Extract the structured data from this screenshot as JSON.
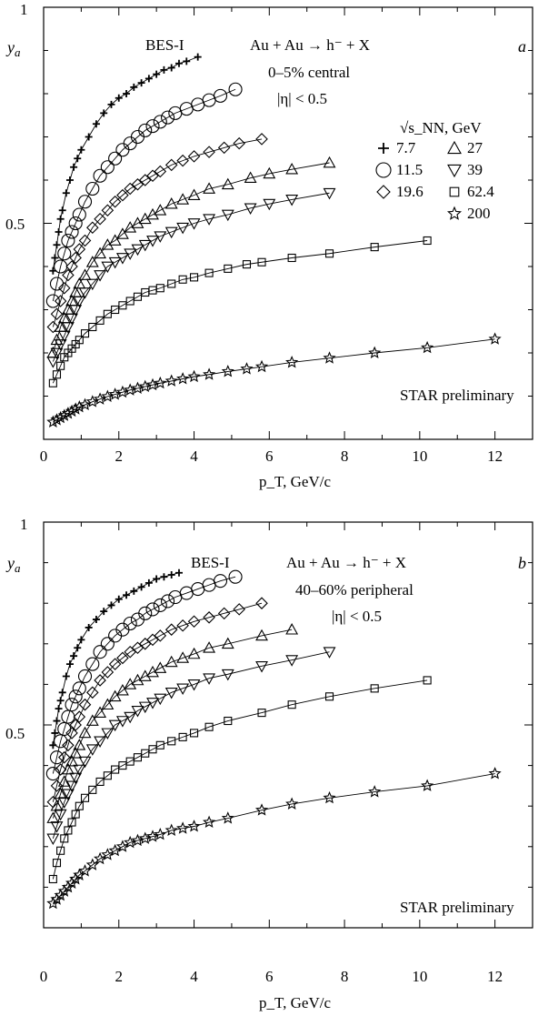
{
  "figure": {
    "energy_header": "√s_NN, GeV",
    "panels_note": "two panels share x axis p_T"
  },
  "chart_data": [
    {
      "type": "line",
      "panel_letter": "a",
      "title_lines": [
        "BES-I",
        "Au + Au → h⁻ + X",
        "0–5% central",
        "|η| < 0.5"
      ],
      "note": "STAR preliminary",
      "xlabel": "p_T, GeV/c",
      "ylabel": "y_a",
      "xlim": [
        0,
        13
      ],
      "ylim": [
        0,
        1
      ],
      "x_ticks": [
        "0",
        "2",
        "4",
        "6",
        "8",
        "10",
        "12"
      ],
      "y_ticks": [
        "0.5",
        "1"
      ],
      "legend_title": "√s_NN, GeV",
      "series": [
        {
          "name": "7.7",
          "marker": "plus",
          "x": [
            0.25,
            0.3,
            0.35,
            0.4,
            0.45,
            0.5,
            0.6,
            0.7,
            0.8,
            0.9,
            1.0,
            1.2,
            1.4,
            1.6,
            1.8,
            2.0,
            2.2,
            2.4,
            2.6,
            2.8,
            3.0,
            3.2,
            3.4,
            3.6,
            3.8,
            4.1
          ],
          "y": [
            0.39,
            0.42,
            0.45,
            0.48,
            0.51,
            0.53,
            0.57,
            0.6,
            0.63,
            0.65,
            0.67,
            0.7,
            0.73,
            0.755,
            0.775,
            0.79,
            0.8,
            0.815,
            0.825,
            0.835,
            0.845,
            0.855,
            0.86,
            0.87,
            0.875,
            0.885
          ]
        },
        {
          "name": "11.5",
          "marker": "circle",
          "x": [
            0.25,
            0.35,
            0.45,
            0.55,
            0.65,
            0.75,
            0.85,
            0.95,
            1.1,
            1.3,
            1.5,
            1.7,
            1.9,
            2.1,
            2.3,
            2.5,
            2.7,
            2.9,
            3.1,
            3.3,
            3.5,
            3.8,
            4.1,
            4.4,
            4.7,
            5.1
          ],
          "y": [
            0.32,
            0.36,
            0.4,
            0.43,
            0.46,
            0.48,
            0.5,
            0.52,
            0.55,
            0.58,
            0.61,
            0.63,
            0.65,
            0.67,
            0.685,
            0.7,
            0.715,
            0.725,
            0.735,
            0.745,
            0.755,
            0.765,
            0.775,
            0.785,
            0.795,
            0.81
          ]
        },
        {
          "name": "19.6",
          "marker": "diamond",
          "x": [
            0.25,
            0.35,
            0.45,
            0.55,
            0.65,
            0.75,
            0.85,
            0.95,
            1.1,
            1.3,
            1.5,
            1.7,
            1.9,
            2.1,
            2.3,
            2.5,
            2.7,
            2.9,
            3.1,
            3.4,
            3.7,
            4.0,
            4.4,
            4.8,
            5.2,
            5.8
          ],
          "y": [
            0.26,
            0.29,
            0.32,
            0.35,
            0.38,
            0.4,
            0.42,
            0.44,
            0.46,
            0.49,
            0.51,
            0.53,
            0.55,
            0.565,
            0.58,
            0.59,
            0.6,
            0.61,
            0.62,
            0.635,
            0.645,
            0.655,
            0.665,
            0.675,
            0.685,
            0.695
          ]
        },
        {
          "name": "27",
          "marker": "triangle-up",
          "x": [
            0.25,
            0.35,
            0.45,
            0.55,
            0.65,
            0.75,
            0.85,
            0.95,
            1.1,
            1.3,
            1.5,
            1.7,
            1.9,
            2.1,
            2.3,
            2.5,
            2.7,
            2.9,
            3.1,
            3.4,
            3.7,
            4.0,
            4.4,
            4.9,
            5.5,
            6.0,
            6.6,
            7.6
          ],
          "y": [
            0.2,
            0.23,
            0.26,
            0.28,
            0.3,
            0.32,
            0.34,
            0.36,
            0.38,
            0.41,
            0.43,
            0.45,
            0.46,
            0.475,
            0.49,
            0.5,
            0.51,
            0.52,
            0.53,
            0.545,
            0.555,
            0.565,
            0.58,
            0.59,
            0.605,
            0.615,
            0.625,
            0.64
          ]
        },
        {
          "name": "39",
          "marker": "triangle-down",
          "x": [
            0.25,
            0.35,
            0.45,
            0.55,
            0.65,
            0.75,
            0.85,
            0.95,
            1.1,
            1.3,
            1.5,
            1.7,
            1.9,
            2.1,
            2.3,
            2.5,
            2.7,
            2.9,
            3.1,
            3.4,
            3.7,
            4.0,
            4.4,
            4.9,
            5.5,
            6.0,
            6.6,
            7.6
          ],
          "y": [
            0.18,
            0.2,
            0.22,
            0.24,
            0.26,
            0.28,
            0.3,
            0.32,
            0.34,
            0.36,
            0.38,
            0.4,
            0.41,
            0.42,
            0.43,
            0.44,
            0.45,
            0.46,
            0.47,
            0.48,
            0.49,
            0.5,
            0.51,
            0.52,
            0.535,
            0.545,
            0.555,
            0.57
          ]
        },
        {
          "name": "62.4",
          "marker": "square",
          "x": [
            0.25,
            0.35,
            0.45,
            0.55,
            0.65,
            0.75,
            0.85,
            0.95,
            1.1,
            1.3,
            1.5,
            1.7,
            1.9,
            2.1,
            2.3,
            2.5,
            2.7,
            2.9,
            3.1,
            3.4,
            3.7,
            4.0,
            4.4,
            4.9,
            5.4,
            5.8,
            6.6,
            7.6,
            8.8,
            10.2
          ],
          "y": [
            0.13,
            0.15,
            0.17,
            0.19,
            0.2,
            0.21,
            0.22,
            0.23,
            0.245,
            0.26,
            0.275,
            0.29,
            0.3,
            0.31,
            0.32,
            0.33,
            0.34,
            0.345,
            0.35,
            0.36,
            0.37,
            0.375,
            0.385,
            0.395,
            0.405,
            0.41,
            0.42,
            0.43,
            0.445,
            0.46
          ]
        },
        {
          "name": "200",
          "marker": "star",
          "x": [
            0.25,
            0.35,
            0.45,
            0.55,
            0.65,
            0.75,
            0.85,
            0.95,
            1.1,
            1.3,
            1.5,
            1.7,
            1.9,
            2.1,
            2.3,
            2.5,
            2.7,
            2.9,
            3.1,
            3.4,
            3.7,
            4.0,
            4.4,
            4.9,
            5.4,
            5.8,
            6.6,
            7.6,
            8.8,
            10.2,
            12.0
          ],
          "y": [
            0.04,
            0.045,
            0.05,
            0.055,
            0.06,
            0.065,
            0.07,
            0.075,
            0.08,
            0.087,
            0.093,
            0.099,
            0.104,
            0.109,
            0.114,
            0.118,
            0.122,
            0.126,
            0.13,
            0.135,
            0.14,
            0.145,
            0.15,
            0.157,
            0.163,
            0.168,
            0.178,
            0.188,
            0.2,
            0.212,
            0.232
          ]
        }
      ]
    },
    {
      "type": "line",
      "panel_letter": "b",
      "title_lines": [
        "BES-I",
        "Au + Au → h⁻ + X",
        "40–60% peripheral",
        "|η| < 0.5"
      ],
      "note": "STAR preliminary",
      "xlabel": "p_T, GeV/c",
      "ylabel": "y_a",
      "xlim": [
        0,
        13
      ],
      "ylim": [
        0,
        1
      ],
      "x_ticks": [
        "0",
        "2",
        "4",
        "6",
        "8",
        "10",
        "12"
      ],
      "y_ticks": [
        "0.5",
        "1"
      ],
      "series": [
        {
          "name": "7.7",
          "marker": "plus",
          "x": [
            0.25,
            0.3,
            0.35,
            0.4,
            0.45,
            0.5,
            0.6,
            0.7,
            0.8,
            0.9,
            1.0,
            1.2,
            1.4,
            1.6,
            1.8,
            2.0,
            2.2,
            2.4,
            2.6,
            2.8,
            3.0,
            3.2,
            3.4,
            3.6
          ],
          "y": [
            0.45,
            0.48,
            0.51,
            0.54,
            0.56,
            0.58,
            0.62,
            0.65,
            0.67,
            0.69,
            0.71,
            0.74,
            0.76,
            0.78,
            0.795,
            0.81,
            0.82,
            0.83,
            0.84,
            0.85,
            0.86,
            0.865,
            0.87,
            0.875
          ]
        },
        {
          "name": "11.5",
          "marker": "circle",
          "x": [
            0.25,
            0.35,
            0.45,
            0.55,
            0.65,
            0.75,
            0.85,
            0.95,
            1.1,
            1.3,
            1.5,
            1.7,
            1.9,
            2.1,
            2.3,
            2.5,
            2.7,
            2.9,
            3.1,
            3.3,
            3.5,
            3.8,
            4.1,
            4.4,
            4.7,
            5.1
          ],
          "y": [
            0.38,
            0.42,
            0.46,
            0.49,
            0.52,
            0.55,
            0.57,
            0.59,
            0.62,
            0.65,
            0.68,
            0.7,
            0.72,
            0.735,
            0.75,
            0.76,
            0.775,
            0.785,
            0.795,
            0.805,
            0.815,
            0.825,
            0.835,
            0.845,
            0.855,
            0.865
          ]
        },
        {
          "name": "19.6",
          "marker": "diamond",
          "x": [
            0.25,
            0.35,
            0.45,
            0.55,
            0.65,
            0.75,
            0.85,
            0.95,
            1.1,
            1.3,
            1.5,
            1.7,
            1.9,
            2.1,
            2.3,
            2.5,
            2.7,
            2.9,
            3.1,
            3.4,
            3.7,
            4.0,
            4.4,
            4.8,
            5.2,
            5.8
          ],
          "y": [
            0.31,
            0.35,
            0.39,
            0.42,
            0.45,
            0.48,
            0.5,
            0.52,
            0.55,
            0.58,
            0.61,
            0.63,
            0.65,
            0.665,
            0.68,
            0.69,
            0.7,
            0.71,
            0.72,
            0.735,
            0.745,
            0.755,
            0.765,
            0.775,
            0.785,
            0.8
          ]
        },
        {
          "name": "27",
          "marker": "triangle-up",
          "x": [
            0.25,
            0.35,
            0.45,
            0.55,
            0.65,
            0.75,
            0.85,
            0.95,
            1.1,
            1.3,
            1.5,
            1.7,
            1.9,
            2.1,
            2.3,
            2.5,
            2.7,
            2.9,
            3.1,
            3.4,
            3.7,
            4.0,
            4.4,
            4.9,
            5.8,
            6.6
          ],
          "y": [
            0.27,
            0.3,
            0.33,
            0.36,
            0.39,
            0.41,
            0.43,
            0.45,
            0.48,
            0.51,
            0.53,
            0.55,
            0.57,
            0.585,
            0.6,
            0.61,
            0.62,
            0.63,
            0.64,
            0.655,
            0.665,
            0.675,
            0.69,
            0.7,
            0.72,
            0.735
          ]
        },
        {
          "name": "39",
          "marker": "triangle-down",
          "x": [
            0.25,
            0.35,
            0.45,
            0.55,
            0.65,
            0.75,
            0.85,
            0.95,
            1.1,
            1.3,
            1.5,
            1.7,
            1.9,
            2.1,
            2.3,
            2.5,
            2.7,
            2.9,
            3.1,
            3.4,
            3.7,
            4.0,
            4.4,
            4.9,
            5.8,
            6.6,
            7.6
          ],
          "y": [
            0.22,
            0.25,
            0.28,
            0.31,
            0.33,
            0.35,
            0.37,
            0.39,
            0.41,
            0.44,
            0.46,
            0.48,
            0.5,
            0.51,
            0.52,
            0.535,
            0.545,
            0.555,
            0.565,
            0.58,
            0.59,
            0.6,
            0.615,
            0.625,
            0.645,
            0.66,
            0.68
          ]
        },
        {
          "name": "62.4",
          "marker": "square",
          "x": [
            0.25,
            0.35,
            0.45,
            0.55,
            0.65,
            0.75,
            0.85,
            0.95,
            1.1,
            1.3,
            1.5,
            1.7,
            1.9,
            2.1,
            2.3,
            2.5,
            2.7,
            2.9,
            3.1,
            3.4,
            3.7,
            4.0,
            4.4,
            4.9,
            5.8,
            6.6,
            7.6,
            8.8,
            10.2
          ],
          "y": [
            0.12,
            0.16,
            0.19,
            0.22,
            0.24,
            0.26,
            0.28,
            0.3,
            0.32,
            0.34,
            0.36,
            0.375,
            0.39,
            0.4,
            0.41,
            0.42,
            0.43,
            0.44,
            0.45,
            0.46,
            0.47,
            0.48,
            0.495,
            0.51,
            0.53,
            0.55,
            0.57,
            0.59,
            0.61
          ]
        },
        {
          "name": "200",
          "marker": "star",
          "x": [
            0.25,
            0.35,
            0.45,
            0.55,
            0.65,
            0.75,
            0.85,
            0.95,
            1.1,
            1.3,
            1.5,
            1.7,
            1.9,
            2.1,
            2.3,
            2.5,
            2.7,
            2.9,
            3.1,
            3.4,
            3.7,
            4.0,
            4.4,
            4.9,
            5.8,
            6.6,
            7.6,
            8.8,
            10.2,
            12.0
          ],
          "y": [
            0.06,
            0.07,
            0.08,
            0.09,
            0.1,
            0.11,
            0.12,
            0.13,
            0.14,
            0.155,
            0.17,
            0.18,
            0.19,
            0.2,
            0.21,
            0.215,
            0.22,
            0.225,
            0.23,
            0.24,
            0.245,
            0.25,
            0.26,
            0.27,
            0.29,
            0.305,
            0.32,
            0.335,
            0.35,
            0.38
          ]
        }
      ]
    }
  ]
}
